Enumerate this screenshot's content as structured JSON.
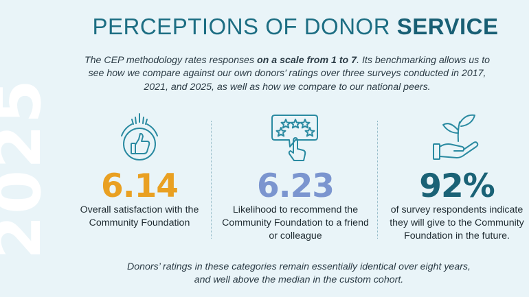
{
  "year": "2025",
  "title": {
    "prefix": "PERCEPTIONS OF DONOR ",
    "bold": "SERVICE"
  },
  "intro": {
    "part1": "The CEP methodology rates responses ",
    "bold": "on a scale from 1 to 7",
    "part2": ". Its benchmarking allows us to see how we compare against our own donors’ ratings over three surveys conducted in 2017, 2021, and 2025, as well as how we compare to our national peers."
  },
  "stats": [
    {
      "icon": "thumbs-up-icon",
      "value": "6.14",
      "desc": "Overall satisfaction with the Community Foundation",
      "color": "#e9a022"
    },
    {
      "icon": "star-rating-icon",
      "value": "6.23",
      "desc": "Likelihood to recommend the Community Foundation to a friend or colleague",
      "color": "#7b95cf"
    },
    {
      "icon": "hand-plant-icon",
      "value": "92%",
      "desc": "of survey respondents indicate they will give to the Community Foundation in the future.",
      "color": "#1a6276"
    }
  ],
  "footer": "Donors’ ratings in these categories remain essentially identical over eight years, and well above the median in the custom cohort."
}
